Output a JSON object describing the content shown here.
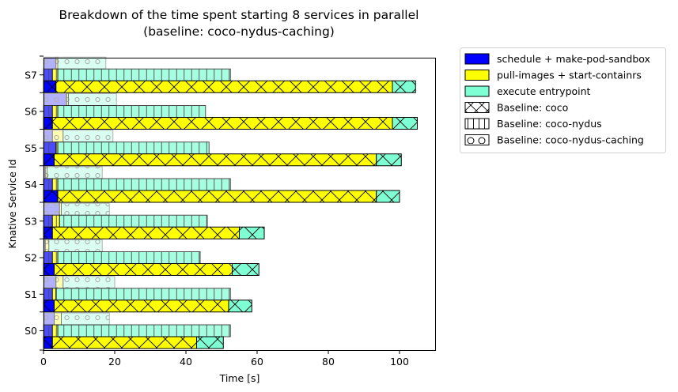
{
  "chart_data": {
    "type": "bar",
    "orientation": "horizontal",
    "stacked": true,
    "title_line1": "Breakdown of the time spent starting 8 services in parallel",
    "title_line2": "(baseline: coco-nydus-caching)",
    "xlabel": "Time [s]",
    "ylabel": "Knative Service Id",
    "xlim": [
      0,
      110
    ],
    "xticks": [
      "0",
      "20",
      "40",
      "60",
      "80",
      "100"
    ],
    "categories": [
      "S0",
      "S1",
      "S2",
      "S3",
      "S4",
      "S5",
      "S6",
      "S7"
    ],
    "phases": [
      {
        "name": "schedule + make-pod-sandbox",
        "color": "#0000ff"
      },
      {
        "name": "pull-images + start-containrs",
        "color": "#ffff00"
      },
      {
        "name": "execute entrypoint",
        "color": "#7fffd4"
      }
    ],
    "baselines": [
      {
        "name": "Baseline: coco",
        "hatch": "x",
        "opacity": 1.0
      },
      {
        "name": "Baseline: coco-nydus",
        "hatch": "|",
        "opacity": 0.7
      },
      {
        "name": "Baseline: coco-nydus-caching",
        "hatch": "o",
        "opacity": 0.3
      }
    ],
    "series": [
      {
        "name": "Baseline: coco",
        "stacks": [
          [
            2.5,
            40.5,
            7.5
          ],
          [
            3.0,
            49.0,
            6.5
          ],
          [
            3.0,
            50.0,
            7.5
          ],
          [
            2.5,
            52.5,
            7.0
          ],
          [
            4.0,
            89.5,
            6.5
          ],
          [
            3.0,
            90.5,
            7.0
          ],
          [
            2.5,
            95.5,
            7.0
          ],
          [
            3.5,
            94.5,
            6.5
          ]
        ]
      },
      {
        "name": "Baseline: coco-nydus",
        "stacks": [
          [
            2.5,
            1.5,
            48.5
          ],
          [
            2.5,
            1.0,
            49.0
          ],
          [
            2.5,
            1.5,
            40.0
          ],
          [
            2.5,
            2.0,
            41.5
          ],
          [
            2.5,
            1.5,
            48.5
          ],
          [
            3.5,
            0.5,
            42.5
          ],
          [
            2.5,
            1.5,
            41.5
          ],
          [
            2.5,
            1.5,
            48.5
          ]
        ]
      },
      {
        "name": "Baseline: coco-nydus-caching",
        "stacks": [
          [
            3.0,
            2.0,
            13.5
          ],
          [
            3.5,
            2.0,
            14.5
          ],
          [
            0.5,
            1.0,
            15.0
          ],
          [
            4.5,
            0.5,
            13.5
          ],
          [
            0.5,
            0.5,
            15.5
          ],
          [
            2.5,
            3.0,
            14.0
          ],
          [
            6.5,
            0.5,
            13.5
          ],
          [
            3.5,
            0.5,
            13.5
          ]
        ]
      }
    ],
    "legend_position": "outside upper right",
    "grid": false
  }
}
